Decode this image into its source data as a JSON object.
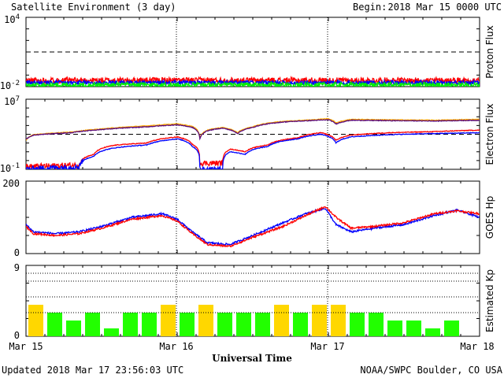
{
  "header": {
    "title": "Satellite Environment (3 day)",
    "begin_label": "Begin:",
    "begin_value": "2018 Mar 15 0000 UTC"
  },
  "footer": {
    "updated": "Updated 2018 Mar 17 23:56:03 UTC",
    "credit": "NOAA/SWPC Boulder, CO USA",
    "xlabel": "Universal Time"
  },
  "x_ticks": [
    "Mar 15",
    "Mar 16",
    "Mar 17",
    "Mar 18"
  ],
  "colors": {
    "red": "#ff0000",
    "blue": "#0000ff",
    "green": "#00ee00",
    "orange": "#ffaa00",
    "purple": "#5a0a7a",
    "kp_quiet": "#22ff00",
    "kp_active": "#ffd700"
  },
  "chart_data": [
    {
      "type": "line",
      "name": "proton-flux",
      "ylabel": "Proton Flux",
      "yscale": "log",
      "ylim": [
        0.01,
        10000
      ],
      "y_ticks": [
        {
          "base": "10",
          "exp": "4",
          "value": 10000
        },
        {
          "base": "10",
          "exp": "-2",
          "value": 0.01
        }
      ],
      "threshold": 10,
      "xlim_days": [
        0,
        3
      ],
      "series": [
        {
          "color": "red",
          "level": 0.035,
          "noise": 0.25
        },
        {
          "color": "blue",
          "level": 0.022,
          "noise": 0.18
        },
        {
          "color": "green",
          "level": 0.014,
          "noise": 0.22
        }
      ]
    },
    {
      "type": "line",
      "name": "electron-flux",
      "ylabel": "Electron Flux",
      "yscale": "log",
      "ylim": [
        0.1,
        10000000
      ],
      "y_ticks": [
        {
          "base": "10",
          "exp": "7",
          "value": 10000000
        },
        {
          "base": "10",
          "exp": "-1",
          "value": 0.1
        }
      ],
      "threshold": 1000,
      "xlim_days": [
        0,
        3
      ],
      "series": [
        {
          "color": "orange",
          "points": [
            [
              0,
              200
            ],
            [
              0.05,
              900
            ],
            [
              0.3,
              1800
            ],
            [
              0.5,
              4000
            ],
            [
              0.8,
              9000
            ],
            [
              1.0,
              15000
            ],
            [
              1.1,
              8000
            ],
            [
              1.15,
              400
            ],
            [
              1.2,
              3000
            ],
            [
              1.3,
              6000
            ],
            [
              1.4,
              1500
            ],
            [
              1.5,
              7000
            ],
            [
              1.7,
              30000
            ],
            [
              1.9,
              45000
            ],
            [
              2.0,
              60000
            ],
            [
              2.05,
              20000
            ],
            [
              2.15,
              50000
            ],
            [
              2.4,
              45000
            ],
            [
              2.7,
              40000
            ],
            [
              3.0,
              50000
            ]
          ]
        },
        {
          "color": "purple",
          "points": [
            [
              0,
              250
            ],
            [
              0.05,
              800
            ],
            [
              0.3,
              1500
            ],
            [
              0.5,
              3500
            ],
            [
              0.8,
              7000
            ],
            [
              1.0,
              12000
            ],
            [
              1.1,
              6000
            ],
            [
              1.15,
              300
            ],
            [
              1.2,
              2500
            ],
            [
              1.3,
              5000
            ],
            [
              1.4,
              1200
            ],
            [
              1.5,
              6000
            ],
            [
              1.7,
              25000
            ],
            [
              1.9,
              38000
            ],
            [
              2.0,
              45000
            ],
            [
              2.05,
              15000
            ],
            [
              2.15,
              40000
            ],
            [
              2.4,
              36000
            ],
            [
              2.7,
              33000
            ],
            [
              3.0,
              40000
            ]
          ]
        },
        {
          "color": "red",
          "points": [
            [
              0,
              0.2
            ],
            [
              0.35,
              0.3
            ],
            [
              0.45,
              5
            ],
            [
              0.6,
              60
            ],
            [
              0.8,
              100
            ],
            [
              1.0,
              500
            ],
            [
              1.1,
              70
            ],
            [
              1.15,
              0.5
            ],
            [
              1.3,
              0.5
            ],
            [
              1.35,
              20
            ],
            [
              1.45,
              10
            ],
            [
              1.6,
              60
            ],
            [
              1.8,
              400
            ],
            [
              1.95,
              1500
            ],
            [
              2.05,
              200
            ],
            [
              2.15,
              800
            ],
            [
              2.4,
              1500
            ],
            [
              2.7,
              2000
            ],
            [
              3.0,
              3000
            ]
          ]
        },
        {
          "color": "blue",
          "points": [
            [
              0,
              0.1
            ],
            [
              0.35,
              0.2
            ],
            [
              0.45,
              3
            ],
            [
              0.6,
              30
            ],
            [
              0.8,
              60
            ],
            [
              1.0,
              300
            ],
            [
              1.1,
              40
            ],
            [
              1.15,
              0.1
            ],
            [
              1.3,
              0.1
            ],
            [
              1.35,
              10
            ],
            [
              1.45,
              5
            ],
            [
              1.6,
              40
            ],
            [
              1.8,
              300
            ],
            [
              1.95,
              1000
            ],
            [
              2.05,
              100
            ],
            [
              2.15,
              500
            ],
            [
              2.4,
              900
            ],
            [
              2.7,
              1200
            ],
            [
              3.0,
              1500
            ]
          ]
        }
      ]
    },
    {
      "type": "line",
      "name": "goes-hp",
      "ylabel": "GOES Hp",
      "yscale": "linear",
      "ylim": [
        0,
        200
      ],
      "y_ticks": [
        {
          "text": "200",
          "value": 200
        },
        {
          "text": "0",
          "value": 0
        }
      ],
      "xlim_days": [
        0,
        3
      ],
      "series": [
        {
          "color": "blue",
          "points": [
            [
              0,
              80
            ],
            [
              0.05,
              60
            ],
            [
              0.2,
              55
            ],
            [
              0.35,
              60
            ],
            [
              0.5,
              75
            ],
            [
              0.7,
              100
            ],
            [
              0.9,
              110
            ],
            [
              1.0,
              95
            ],
            [
              1.1,
              60
            ],
            [
              1.2,
              30
            ],
            [
              1.35,
              25
            ],
            [
              1.5,
              50
            ],
            [
              1.7,
              85
            ],
            [
              1.85,
              110
            ],
            [
              1.98,
              125
            ],
            [
              2.05,
              80
            ],
            [
              2.15,
              60
            ],
            [
              2.3,
              70
            ],
            [
              2.5,
              80
            ],
            [
              2.7,
              105
            ],
            [
              2.85,
              120
            ],
            [
              3.0,
              100
            ]
          ]
        },
        {
          "color": "red",
          "points": [
            [
              0,
              75
            ],
            [
              0.05,
              55
            ],
            [
              0.2,
              50
            ],
            [
              0.35,
              55
            ],
            [
              0.5,
              70
            ],
            [
              0.7,
              95
            ],
            [
              0.9,
              105
            ],
            [
              1.0,
              90
            ],
            [
              1.1,
              55
            ],
            [
              1.2,
              25
            ],
            [
              1.35,
              20
            ],
            [
              1.5,
              45
            ],
            [
              1.7,
              75
            ],
            [
              1.85,
              105
            ],
            [
              1.98,
              130
            ],
            [
              2.05,
              100
            ],
            [
              2.15,
              70
            ],
            [
              2.3,
              75
            ],
            [
              2.5,
              85
            ],
            [
              2.7,
              110
            ],
            [
              2.85,
              118
            ],
            [
              3.0,
              110
            ]
          ]
        }
      ]
    },
    {
      "type": "bar",
      "name": "estimated-kp",
      "ylabel": "Estimated Kp",
      "ylim": [
        0,
        9
      ],
      "y_ticks": [
        {
          "text": "9",
          "value": 9
        },
        {
          "text": "0",
          "value": 0
        }
      ],
      "xlim_days": [
        0,
        3
      ],
      "values": [
        4,
        3,
        2,
        3,
        1,
        3,
        3,
        4,
        3,
        4,
        3,
        3,
        3,
        4,
        3,
        4,
        4,
        3,
        3,
        2,
        2,
        1,
        2
      ],
      "active_threshold": 4
    }
  ]
}
